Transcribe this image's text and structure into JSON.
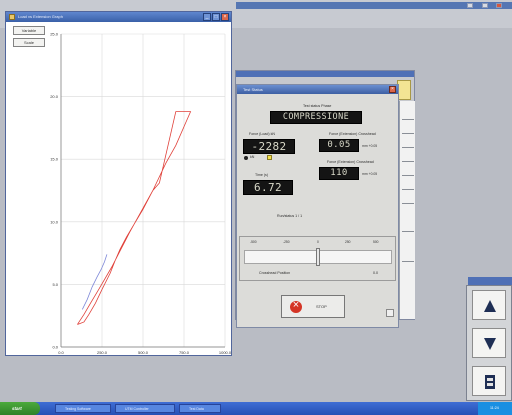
{
  "chart_window": {
    "title": "Load vs Extension Graph",
    "buttons": {
      "b1": "Variable",
      "b2": "Scale"
    }
  },
  "chart_data": {
    "type": "line",
    "title": "",
    "xlabel": "",
    "ylabel": "",
    "xlim": [
      0,
      1000
    ],
    "ylim": [
      0,
      25
    ],
    "x_ticks": [
      "0.0",
      "250.0",
      "500.0",
      "750.0",
      "1000.0"
    ],
    "y_ticks": [
      "0.0",
      "5.0",
      "10.0",
      "15.0",
      "20.0",
      "25.0"
    ],
    "grid": true,
    "series": [
      {
        "color": "#e0413a",
        "x": [
          100,
          140,
          180,
          230,
          310,
          420,
          560,
          600,
          700,
          790,
          760,
          700,
          640,
          560,
          500,
          450,
          400,
          360,
          330,
          300,
          250,
          210,
          170,
          140,
          120,
          100
        ],
        "y": [
          1.8,
          2.6,
          3.5,
          4.6,
          6.4,
          9.2,
          12.5,
          13.1,
          18.8,
          18.8,
          17.9,
          16.1,
          14.7,
          12.5,
          11.0,
          9.9,
          8.8,
          7.8,
          6.9,
          5.9,
          4.6,
          3.5,
          2.6,
          2.0,
          1.9,
          1.8
        ]
      },
      {
        "color": "#7e88d8",
        "x": [
          130,
          160,
          190,
          220,
          245,
          265,
          280
        ],
        "y": [
          3.0,
          3.8,
          4.8,
          5.6,
          6.2,
          6.8,
          7.4
        ]
      }
    ]
  },
  "dialog": {
    "title": "Test Status",
    "test_state_label": "Test status Phase",
    "test_state_value": "COMPRESSIONE",
    "load_label": "Force (Load) kN",
    "load_value": "-2282",
    "ext_label": "Force (Extension) Crosshead",
    "ext_value": "0.05",
    "ext_unit": "mm  +0.05",
    "ext2_label": "Force (Extension) Crosshead",
    "ext2_value": "110",
    "ext2_unit": "mm  +0.05",
    "time_label": "Time (s)",
    "time_value": "6.72",
    "status_text": "Run/status  1 / 1",
    "radio_label": "kN",
    "slider_ticks": [
      "-500",
      "-250",
      "0",
      "250",
      "500"
    ],
    "slider_caption_left": "Crosshead Position",
    "slider_caption_right": "0.0",
    "slider_value": 0.5,
    "stop_label": "STOP"
  },
  "taskbar": {
    "start_label": "start",
    "tasks": [
      "Testing Software",
      "UTM Controller",
      "Test Data"
    ],
    "clock": "11:24"
  },
  "colors": {
    "titlebar": "#3d5fa4",
    "taskbar": "#2650b5",
    "start": "#2e8128",
    "curve_primary": "#e0413a",
    "curve_secondary": "#7e88d8"
  },
  "icons": {
    "up": "triangle-up-icon",
    "down": "triangle-down-icon",
    "home": "crosshead-home-icon",
    "stop": "stop-circle-icon"
  }
}
